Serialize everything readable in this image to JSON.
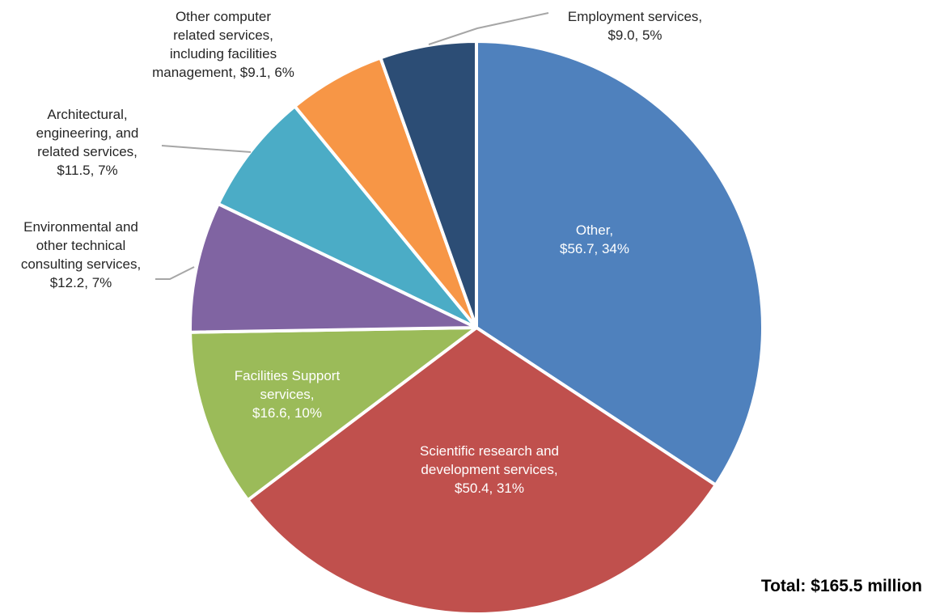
{
  "chart_data": {
    "type": "pie",
    "total_label": "Total: $165.5 million",
    "slices": [
      {
        "name": "Other",
        "value": 56.7,
        "percent": 34,
        "color": "#4F81BD",
        "label_lines": [
          "Other,",
          "$56.7, 34%"
        ]
      },
      {
        "name": "Scientific research and development services",
        "value": 50.4,
        "percent": 31,
        "color": "#C0504D",
        "label_lines": [
          "Scientific research and",
          "development services,",
          "$50.4, 31%"
        ]
      },
      {
        "name": "Facilities Support services",
        "value": 16.6,
        "percent": 10,
        "color": "#9BBB59",
        "label_lines": [
          "Facilities Support",
          "services,",
          "$16.6, 10%"
        ]
      },
      {
        "name": "Environmental and other technical consulting services",
        "value": 12.2,
        "percent": 7,
        "color": "#8064A2",
        "label_lines": [
          "Environmental and",
          "other technical",
          "consulting services,",
          "$12.2, 7%"
        ]
      },
      {
        "name": "Architectural, engineering, and related services",
        "value": 11.5,
        "percent": 7,
        "color": "#4BACC6",
        "label_lines": [
          "Architectural,",
          "engineering, and",
          "related services,",
          "$11.5, 7%"
        ]
      },
      {
        "name": "Other computer related services, including facilities management",
        "value": 9.1,
        "percent": 6,
        "color": "#F79646",
        "label_lines": [
          "Other computer",
          "related services,",
          "including facilities",
          "management, $9.1, 6%"
        ]
      },
      {
        "name": "Employment services",
        "value": 9.0,
        "percent": 5,
        "color": "#2C4D75",
        "label_lines": [
          "Employment services,",
          "$9.0, 5%"
        ]
      }
    ]
  }
}
